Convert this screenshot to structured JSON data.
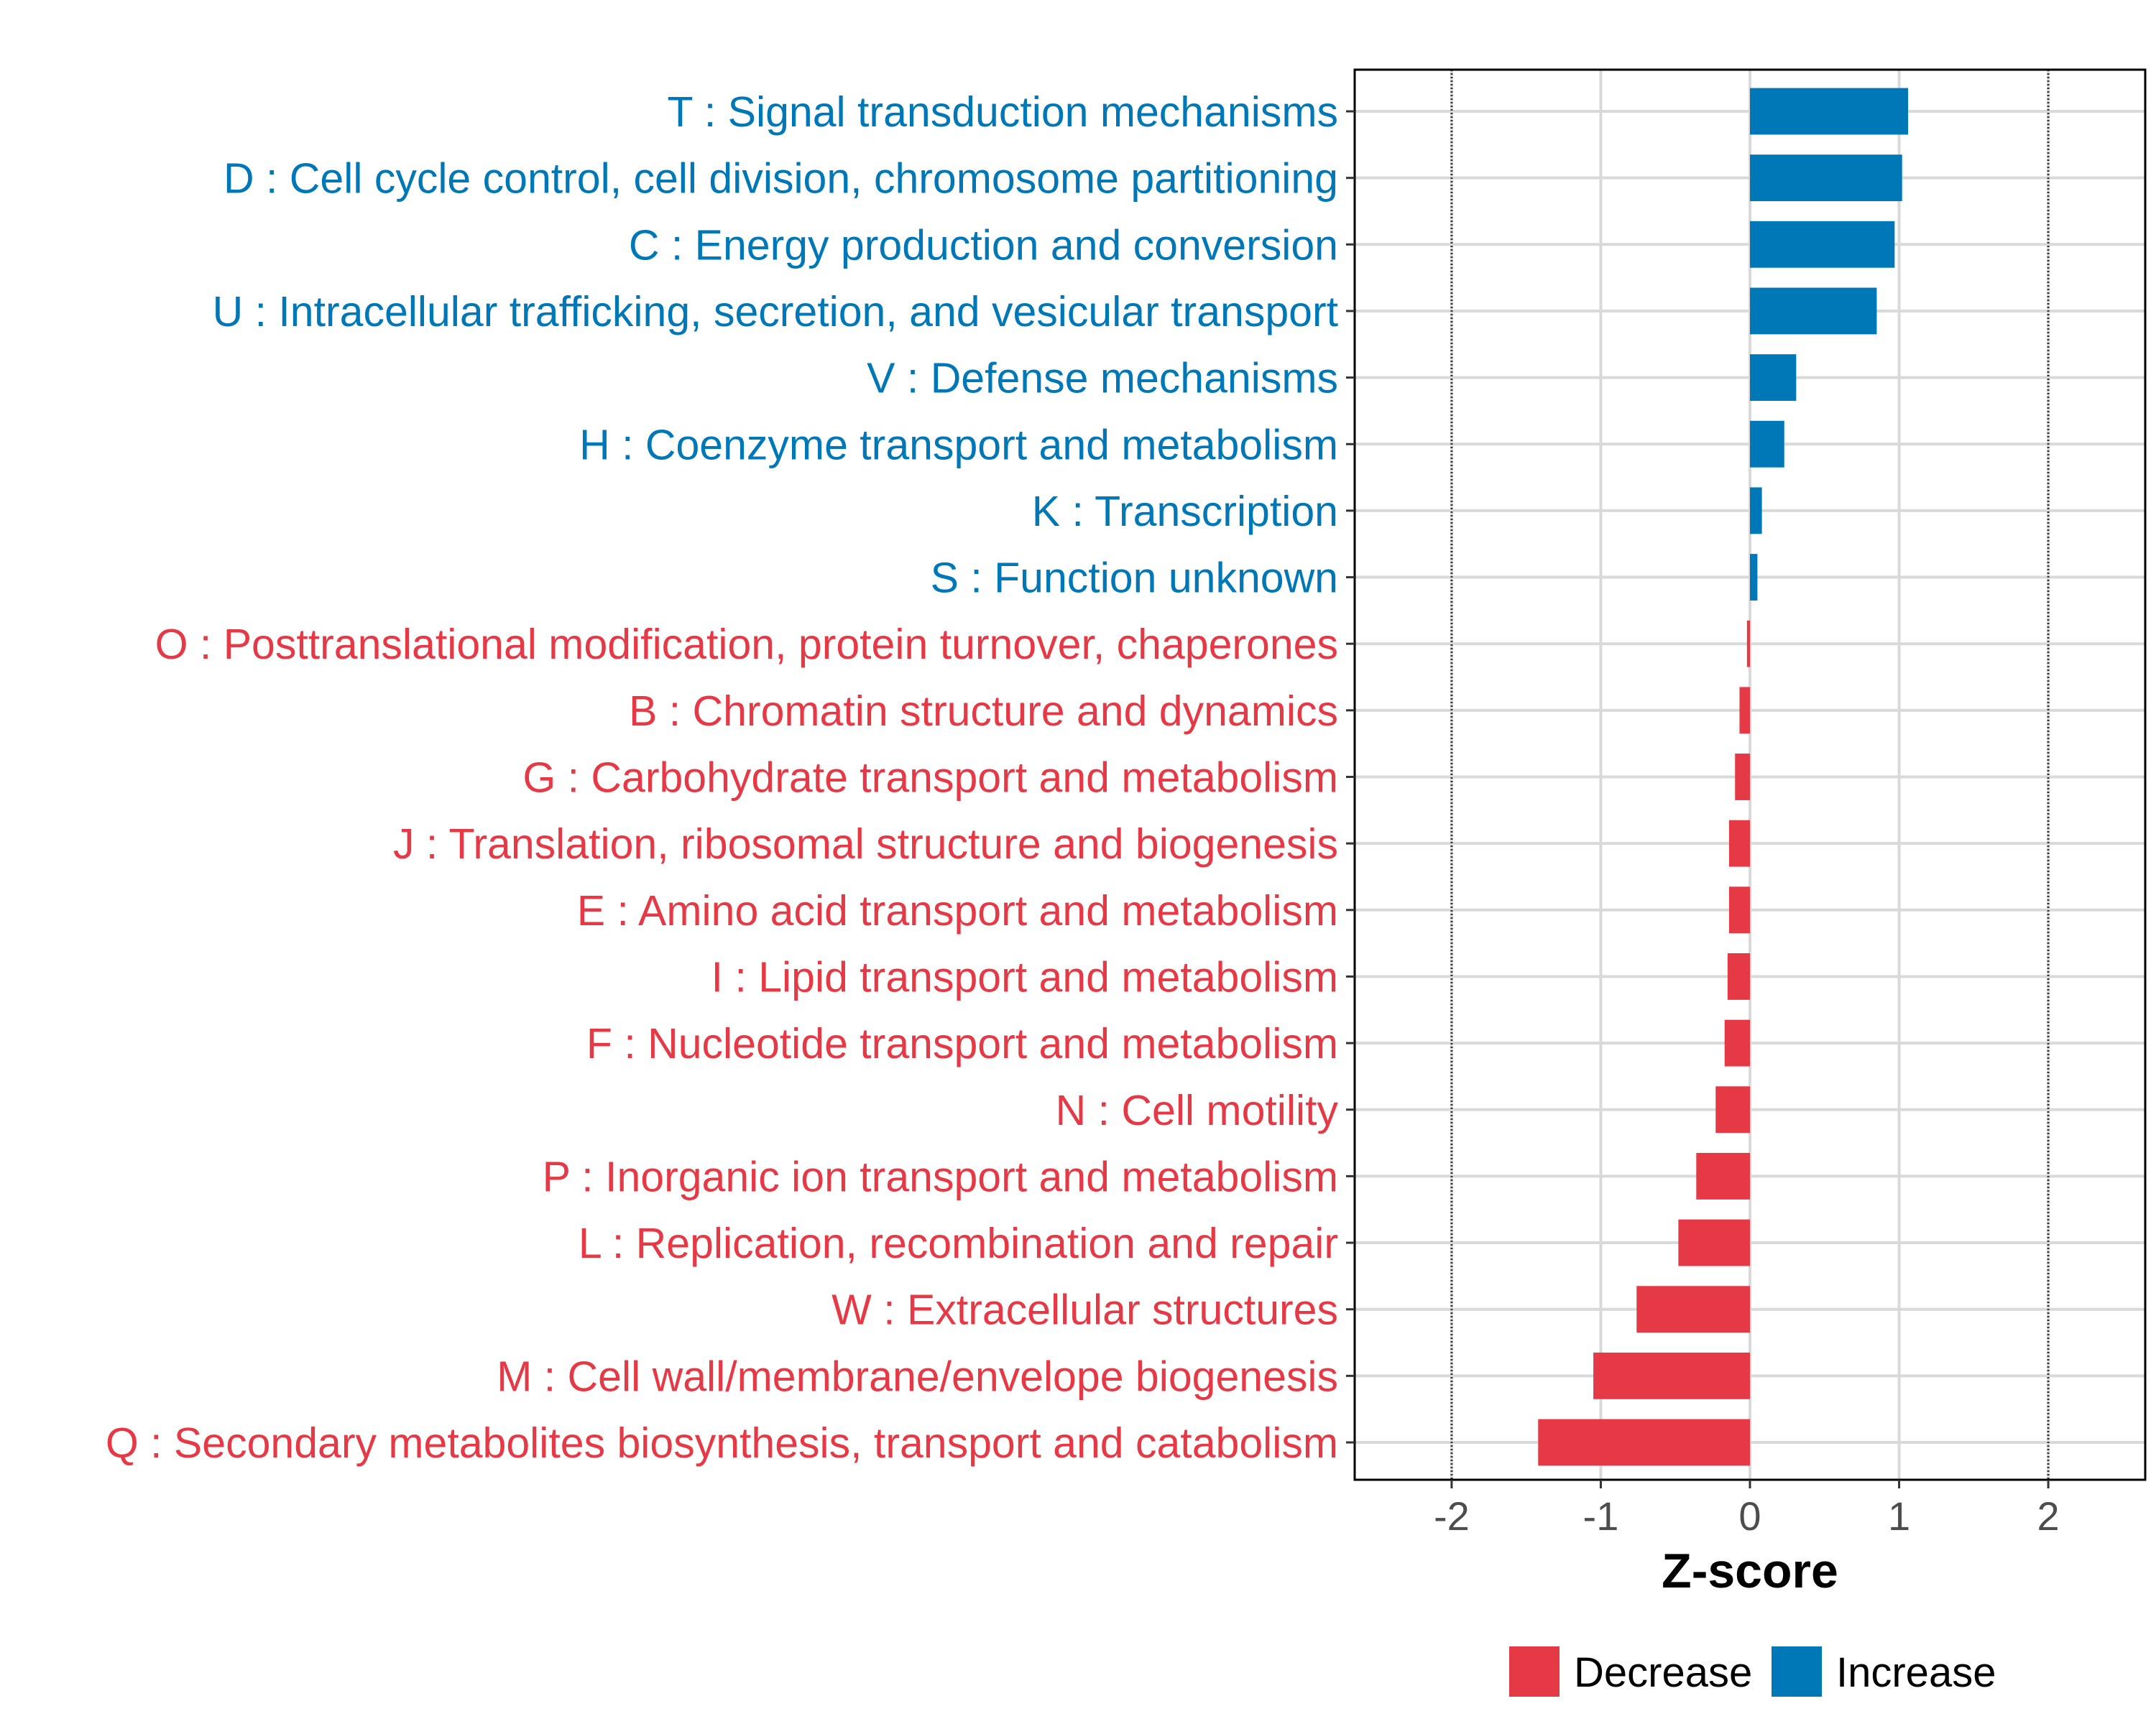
{
  "chart_data": {
    "type": "bar",
    "orientation": "horizontal",
    "xlabel": "Z-score",
    "xlim": [
      -2.65,
      2.65
    ],
    "xticks": [
      -2,
      -1,
      0,
      1,
      2
    ],
    "xtick_labels": [
      "-2",
      "-1",
      "0",
      "1",
      "2"
    ],
    "reference_lines": [
      -2,
      2
    ],
    "categories": [
      "T : Signal transduction mechanisms",
      "D : Cell cycle control, cell division, chromosome partitioning",
      "C : Energy production and conversion",
      "U : Intracellular trafficking, secretion, and vesicular transport",
      "V : Defense mechanisms",
      "H : Coenzyme transport and metabolism",
      "K : Transcription",
      "S : Function unknown",
      "O : Posttranslational modification, protein turnover, chaperones",
      "B : Chromatin structure and dynamics",
      "G : Carbohydrate transport and metabolism",
      "J : Translation, ribosomal structure and biogenesis",
      "E : Amino acid transport and metabolism",
      "I : Lipid transport and metabolism",
      "F : Nucleotide transport and metabolism",
      "N : Cell motility",
      "P : Inorganic ion transport and metabolism",
      "L : Replication, recombination and repair",
      "W : Extracellular structures",
      "M : Cell wall/membrane/envelope biogenesis",
      "Q : Secondary metabolites biosynthesis, transport and catabolism"
    ],
    "values": [
      1.06,
      1.02,
      0.97,
      0.85,
      0.31,
      0.23,
      0.08,
      0.05,
      -0.02,
      -0.07,
      -0.1,
      -0.14,
      -0.14,
      -0.15,
      -0.17,
      -0.23,
      -0.36,
      -0.48,
      -0.76,
      -1.05,
      -1.42
    ],
    "legend": {
      "position": "bottom",
      "entries": [
        {
          "name": "Decrease",
          "color": "#E63946"
        },
        {
          "name": "Increase",
          "color": "#0077B6"
        }
      ]
    }
  },
  "colors": {
    "decrease": "#E63946",
    "increase": "#0077B6",
    "grid": "#d9d9d9",
    "frame": "#000000"
  }
}
